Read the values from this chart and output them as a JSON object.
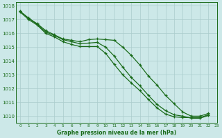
{
  "title": "Graphe pression niveau de la mer (hPa)",
  "background_color": "#cce8e8",
  "grid_color": "#aacccc",
  "line_color": "#1a6b1a",
  "xlim": [
    -0.5,
    23
  ],
  "ylim": [
    1009.5,
    1018.25
  ],
  "yticks": [
    1010,
    1011,
    1012,
    1013,
    1014,
    1015,
    1016,
    1017,
    1018
  ],
  "xticks": [
    0,
    1,
    2,
    3,
    4,
    5,
    6,
    7,
    8,
    9,
    10,
    11,
    12,
    13,
    14,
    15,
    16,
    17,
    18,
    19,
    20,
    21,
    22,
    23
  ],
  "series": [
    {
      "x": [
        0,
        1,
        2,
        3,
        4,
        5,
        6,
        7,
        8,
        9,
        10,
        11,
        12,
        13,
        14,
        15,
        16,
        17,
        18,
        19,
        20,
        21,
        22
      ],
      "y": [
        1017.6,
        1017.1,
        1016.7,
        1016.2,
        1015.9,
        1015.6,
        1015.5,
        1015.4,
        1015.55,
        1015.6,
        1015.55,
        1015.5,
        1015.0,
        1014.4,
        1013.7,
        1012.9,
        1012.25,
        1011.5,
        1010.9,
        1010.3,
        1010.0,
        1010.0,
        1010.2
      ]
    },
    {
      "x": [
        0,
        1,
        2,
        3,
        4,
        5,
        6,
        7,
        8,
        9,
        10,
        11,
        12,
        13,
        14,
        15,
        16,
        17,
        18,
        19,
        20,
        21,
        22
      ],
      "y": [
        1017.6,
        1017.1,
        1016.65,
        1016.1,
        1015.85,
        1015.55,
        1015.4,
        1015.25,
        1015.3,
        1015.35,
        1015.0,
        1014.35,
        1013.55,
        1012.8,
        1012.2,
        1011.5,
        1010.85,
        1010.4,
        1010.1,
        1010.0,
        1009.85,
        1009.85,
        1010.05
      ]
    },
    {
      "x": [
        0,
        1,
        2,
        3,
        4,
        5,
        6,
        7,
        8,
        9,
        10,
        11,
        12,
        13,
        14,
        15,
        16,
        17,
        18,
        19,
        20,
        21,
        22
      ],
      "y": [
        1017.55,
        1017.0,
        1016.6,
        1016.0,
        1015.75,
        1015.4,
        1015.2,
        1015.05,
        1015.05,
        1015.05,
        1014.55,
        1013.75,
        1013.0,
        1012.4,
        1011.85,
        1011.2,
        1010.6,
        1010.15,
        1009.95,
        1009.9,
        1009.9,
        1009.9,
        1010.1
      ]
    }
  ]
}
